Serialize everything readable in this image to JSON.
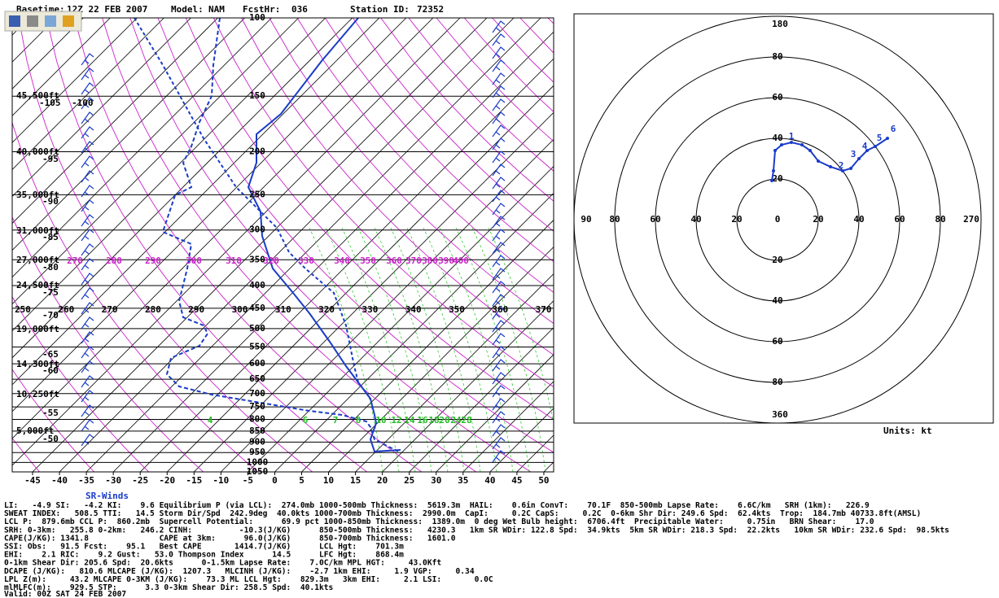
{
  "header": {
    "basetime_label": "Basetime:",
    "basetime": "12Z 22 FEB 2007",
    "model_label": "Model:",
    "model": "NAM",
    "fcst_label": "FcstHr:",
    "fcst": "036",
    "station_label": "Station ID:",
    "station": "72352"
  },
  "skewt": {
    "pressure_labels": [
      100,
      150,
      200,
      250,
      300,
      350,
      400,
      450,
      500,
      550,
      600,
      650,
      700,
      750,
      800,
      850,
      900,
      950,
      1000,
      1050
    ],
    "temp_ticks": [
      -45,
      -40,
      -35,
      -30,
      -25,
      -20,
      -15,
      -10,
      -5,
      0,
      5,
      10,
      15,
      20,
      25,
      30,
      35,
      40,
      45,
      50
    ],
    "height_labels": [
      "45,500ft",
      "40,000ft",
      "35,000ft",
      "31,000ft",
      "27,000ft",
      "24,500ft",
      "19,000ft",
      "14,300ft",
      "10,250ft",
      "5,000ft"
    ],
    "isotherm_labels": [
      "-105",
      "-100",
      "-95",
      "-90",
      "-85",
      "-80",
      "-75",
      "-70",
      "-65",
      "-60",
      "-55",
      "-50"
    ],
    "theta_labels": [
      270,
      280,
      290,
      300,
      310,
      320,
      330,
      340,
      350,
      360,
      370,
      380,
      390,
      400
    ],
    "theta_e_labels": [
      250,
      260,
      270,
      280,
      290,
      300,
      310,
      320,
      330,
      340,
      350,
      360,
      370
    ],
    "mixing_ratio_labels": [
      4,
      6,
      7,
      8,
      10,
      12,
      14,
      16,
      18,
      20,
      24,
      28
    ],
    "sr_winds": "SR-Winds"
  },
  "hodograph": {
    "top_label": "180",
    "bottom_label": "360",
    "left_label": "90",
    "right_label": "270",
    "ring_labels": [
      20,
      40,
      60,
      80
    ],
    "center_label": "0",
    "trace_labels": [
      "1",
      "2",
      "3",
      "4",
      "5",
      "6"
    ],
    "units": "Units: kt"
  },
  "params": [
    "LI:   -4.9 SI:   -4.2 KI:    9.6 Equilibrium P (via LCL):  274.0mb 1000-500mb Thickness:  5619.3m  HAIL:    0.6in ConvT:    70.1F  850-500mb Lapse Rate:    6.6C/km   SRH (1km):   226.9",
    "SWEAT INDEX:   508.5 TTI:   14.5 Storm Dir/Spd  242.9deg  40.0kts 1000-700mb Thickness:  2990.0m  CapI:     0.2C CapS:     0.2C  0-6km Shr Dir: 249.6 Spd:  62.4kts  Trop:  184.7mb 40733.8ft(AMSL)",
    "LCL P:  879.6mb CCL P:  860.2mb  Supercell Potential:      69.9 pct 1000-850mb Thickness:  1389.0m  0 deg Wet Bulb height:  6706.4ft  Precipitable Water:     0.75in   BRN Shear:    17.0",
    "SRH: 0-3km:   255.8 0-2km:   246.2 CINH:          -10.3(J/KG)      850-500mb Thickness:   4230.3   1km SR WDir: 122.8 Spd:  34.9kts  5km SR WDir: 218.3 Spd:  22.2kts   10km SR WDir: 232.6 Spd:  98.5kts",
    "CAPE(J/KG): 1341.8               CAPE at 3km:      96.0(J/KG)      850-700mb Thickness:   1601.0",
    "SSI: Obs:   91.5 Fcst:    95.1   Best CAPE       1414.7(J/KG)      LCL Hgt:    701.3m",
    "EHI:    2.1 RIC:    9.2 Gust:   53.0 Thompson Index      14.5      LFC Hgt:    868.4m",
    "0-1km Shear Dir: 205.6 Spd:  20.6kts      0-1.5km Lapse Rate:    7.0C/km MPL HGT:     43.0Kft",
    "DCAPE (J/KG):   810.6 MLCAPE (J/KG):  1207.3   MLCINH (J/KG):    -2.7 1km EHI:     1.9 VGP:     0.34",
    "LPL Z(m):     43.2 MLCAPE 0-3KM (J/KG):    73.3 ML LCL Hgt:    829.3m   3km EHI:     2.1 LSI:       0.0C",
    "mlMLFC(m):    929.5 STP:      3.3 0-3km Shear Dir: 258.5 Spd:  40.1kts"
  ],
  "valid": "Valid: 00Z SAT 24 FEB 2007"
}
